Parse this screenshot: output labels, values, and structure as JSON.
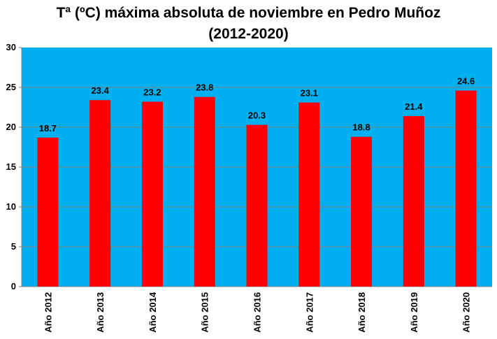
{
  "chart_data": {
    "type": "bar",
    "title_line1": "Tª (ºC) máxima absoluta de noviembre en Pedro Muñoz",
    "title_line2": "(2012-2020)",
    "categories": [
      "Año 2012",
      "Año 2013",
      "Año 2014",
      "Año 2015",
      "Año 2016",
      "Año 2017",
      "Año 2018",
      "Año 2019",
      "Año 2020"
    ],
    "values": [
      18.7,
      23.4,
      23.2,
      23.8,
      20.3,
      23.1,
      18.8,
      21.4,
      24.6
    ],
    "value_labels": [
      "18.7",
      "23.4",
      "23.2",
      "23.8",
      "20.3",
      "23.1",
      "18.8",
      "21.4",
      "24.6"
    ],
    "y_ticks": [
      "0",
      "5",
      "10",
      "15",
      "20",
      "25",
      "30"
    ],
    "ylim": [
      0,
      30
    ],
    "xlabel": "",
    "ylabel": "",
    "grid": true,
    "legend": "none",
    "colors": {
      "plot_background": "#00B0F0",
      "bar": "#FF0000",
      "gridline": "#7F7F7F"
    }
  }
}
